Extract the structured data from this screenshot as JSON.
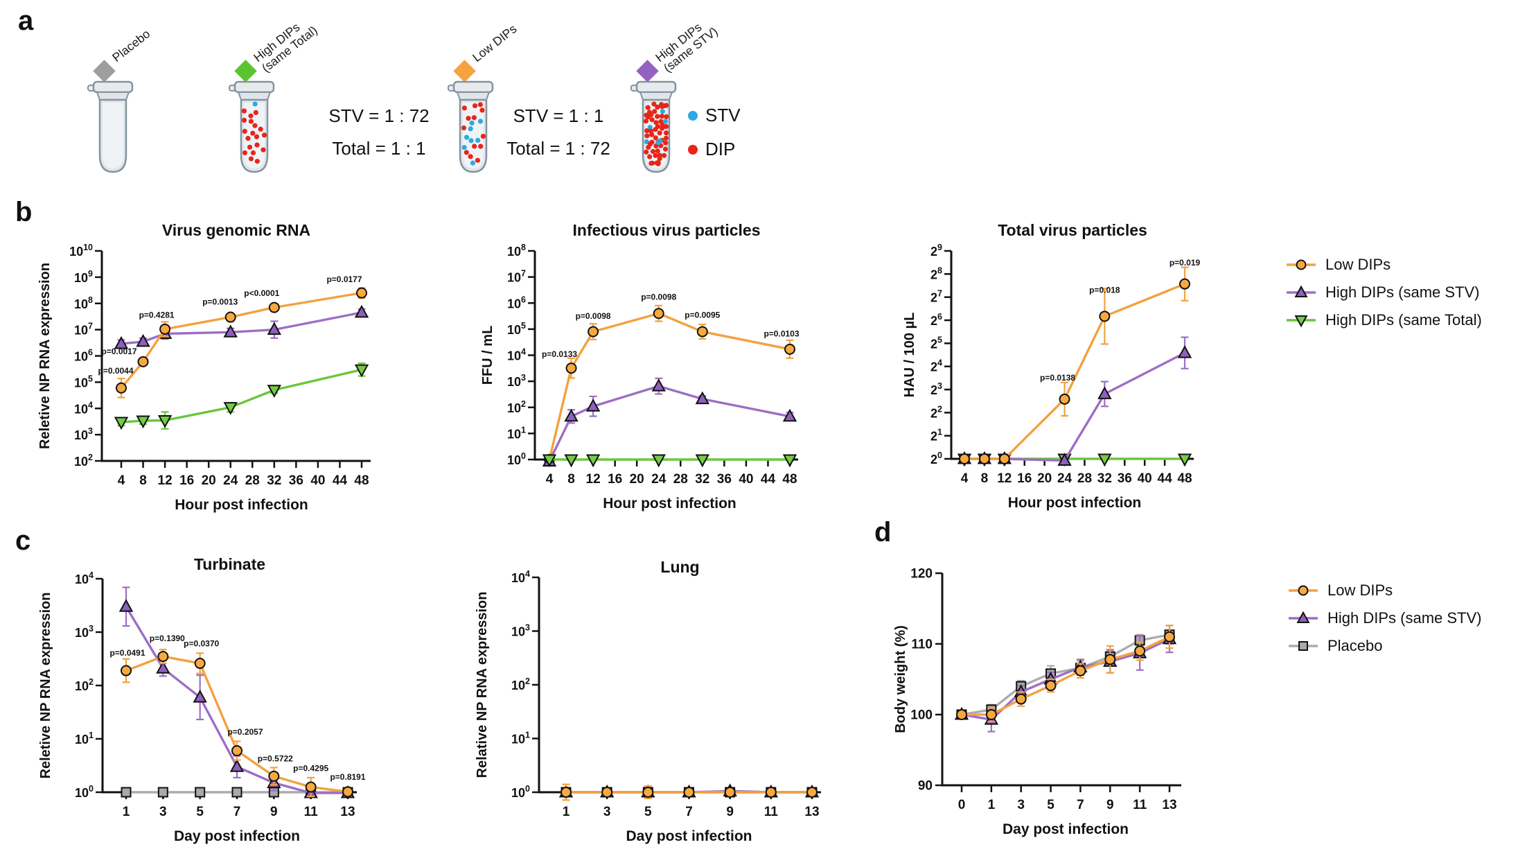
{
  "panel_a": {
    "label": "a",
    "tubes": [
      {
        "name": "Placebo",
        "diamond_color": "#9E9EA0",
        "label_lines": [
          "Placebo"
        ],
        "red_dots": 0,
        "blue_dots": 0
      },
      {
        "name": "High DIPs (same Total)",
        "diamond_color": "#5BC42E",
        "label_lines": [
          "High DIPs",
          "(same Total)"
        ],
        "red_dots": 19,
        "blue_dots": 1
      },
      {
        "name": "Low DIPs",
        "diamond_color": "#F5A340",
        "label_lines": [
          "Low DIPs"
        ],
        "red_dots": 13,
        "blue_dots": 8
      },
      {
        "name": "High DIPs (same STV)",
        "diamond_color": "#9662C1",
        "label_lines": [
          "High DIPs",
          "(same STV)"
        ],
        "red_dots": 54,
        "blue_dots": 6
      }
    ],
    "ratio_blocks": [
      {
        "line1": "STV = 1 : 72",
        "line2": "Total = 1 : 1"
      },
      {
        "line1": "STV = 1 : 1",
        "line2": "Total = 1 : 72"
      }
    ],
    "particle_legend": [
      {
        "label": "STV",
        "color": "#2CA9E1"
      },
      {
        "label": "DIP",
        "color": "#E82519"
      }
    ]
  },
  "panel_b": {
    "label": "b",
    "legend": [
      {
        "label": "Low DIPs",
        "marker": "circle",
        "color": "#F3A13F",
        "fill": "#F6A940"
      },
      {
        "label": "High DIPs (same STV)",
        "marker": "triangle-up",
        "color": "#9C6EC6",
        "fill": "#8F5FBC"
      },
      {
        "label": "High DIPs (same Total)",
        "marker": "triangle-down",
        "color": "#68C73C",
        "fill": "#74CC45"
      }
    ]
  },
  "panel_c": {
    "label": "c"
  },
  "panel_d": {
    "label": "d",
    "legend": [
      {
        "label": "Low DIPs",
        "marker": "circle",
        "color": "#F3A13F",
        "fill": "#F6A940"
      },
      {
        "label": "High DIPs (same STV)",
        "marker": "triangle-up",
        "color": "#9C6EC6",
        "fill": "#8F5FBC"
      },
      {
        "label": "Placebo",
        "marker": "square",
        "color": "#ACACAC",
        "fill": "#A9A9A9"
      }
    ]
  },
  "chart_data": [
    {
      "id": "virus-genomic-rna",
      "panel": "b",
      "type": "line",
      "title": "Virus genomic RNA",
      "xlabel": "Hour post infection",
      "ylabel": "Reletive NP RNA expression",
      "x_mode": "linear",
      "x_ticks": [
        4,
        8,
        12,
        16,
        20,
        24,
        28,
        32,
        36,
        40,
        44,
        48
      ],
      "y_scale": "log10",
      "y_exp_range": [
        2,
        10
      ],
      "grid": false,
      "legend_position": "right-of-panel",
      "series": [
        {
          "name": "High DIPs (same Total)",
          "color": "#68C73C",
          "fill": "#74CC45",
          "marker": "triangle-down",
          "x": [
            4,
            8,
            12,
            24,
            32,
            48
          ],
          "values": [
            3000,
            3400,
            3500,
            11000,
            50000,
            300000
          ],
          "err": [
            1.35,
            1.35,
            2.1,
            1.5,
            1.3,
            1.75
          ]
        },
        {
          "name": "High DIPs (same STV)",
          "color": "#9C6EC6",
          "fill": "#8F5FBC",
          "marker": "triangle-up",
          "x": [
            4,
            8,
            12,
            24,
            32,
            48
          ],
          "values": [
            2900000,
            3500000,
            7000000,
            8000000,
            10000000,
            45000000
          ],
          "err": [
            1.4,
            1.35,
            1.6,
            1.4,
            2.1,
            1.35
          ]
        },
        {
          "name": "Low DIPs",
          "color": "#F3A13F",
          "fill": "#F6A940",
          "marker": "circle",
          "x": [
            4,
            8,
            12,
            24,
            32,
            48
          ],
          "values": [
            60000,
            600000,
            10500000,
            30000000,
            70000000,
            250000000
          ],
          "err": [
            2.3,
            1.3,
            1.9,
            1.3,
            1.2,
            1.55
          ]
        }
      ],
      "annotations": [
        {
          "text": "p=0.0044",
          "x": 4,
          "y": 210000,
          "dx": -8
        },
        {
          "text": "p=0.0017",
          "x": 4,
          "y": 1150000,
          "dx": -3
        },
        {
          "text": "p=0.4281",
          "x": 12,
          "y": 28000000,
          "dx": -12
        },
        {
          "text": "p=0.0013",
          "x": 24,
          "y": 90000000,
          "dx": -15
        },
        {
          "text": "p<0.0001",
          "x": 32,
          "y": 190000000,
          "dx": -18
        },
        {
          "text": "p=0.0177",
          "x": 48,
          "y": 650000000,
          "dx": -25
        }
      ]
    },
    {
      "id": "infectious-virus-particles",
      "panel": "b",
      "type": "line",
      "title": "Infectious virus particles",
      "xlabel": "Hour post infection",
      "ylabel": "FFU / mL",
      "x_mode": "linear",
      "x_ticks": [
        4,
        8,
        12,
        16,
        20,
        24,
        28,
        32,
        36,
        40,
        44,
        48
      ],
      "y_scale": "log10",
      "y_exp_range": [
        0,
        8
      ],
      "grid": false,
      "series": [
        {
          "name": "Low DIPs",
          "color": "#F3A13F",
          "fill": "#F6A940",
          "marker": "circle",
          "x": [
            4,
            8,
            12,
            24,
            32,
            48
          ],
          "values": [
            1,
            3200,
            80000,
            400000,
            80000,
            17000
          ],
          "err": [
            1,
            2.4,
            2.0,
            2.0,
            1.9,
            2.2
          ]
        },
        {
          "name": "High DIPs (same STV)",
          "color": "#9C6EC6",
          "fill": "#8F5FBC",
          "marker": "triangle-up",
          "x": [
            4,
            8,
            12,
            24,
            32,
            48
          ],
          "values": [
            0.85,
            45,
            110,
            650,
            210,
            45
          ],
          "err": [
            1,
            1.8,
            2.4,
            2.0,
            1.3,
            1.4
          ]
        },
        {
          "name": "High DIPs (same Total)",
          "color": "#68C73C",
          "fill": "#74CC45",
          "marker": "triangle-down",
          "x": [
            4,
            8,
            12,
            24,
            32,
            48
          ],
          "values": [
            1,
            1,
            1,
            1,
            1,
            1
          ],
          "err": [
            1,
            1,
            1,
            1,
            1,
            1
          ]
        }
      ],
      "annotations": [
        {
          "text": "p=0.0133",
          "x": 8,
          "y": 8500,
          "dx": -17
        },
        {
          "text": "p=0.0098",
          "x": 12,
          "y": 250000,
          "dx": 0
        },
        {
          "text": "p=0.0098",
          "x": 24,
          "y": 1350000,
          "dx": 0
        },
        {
          "text": "p=0.0095",
          "x": 32,
          "y": 270000,
          "dx": 0
        },
        {
          "text": "p=0.0103",
          "x": 48,
          "y": 52000,
          "dx": -12
        }
      ]
    },
    {
      "id": "total-virus-particles",
      "panel": "b",
      "type": "line",
      "title": "Total virus particles",
      "xlabel": "Hour post infection",
      "ylabel": "HAU / 100 µL",
      "x_mode": "linear",
      "x_ticks": [
        4,
        8,
        12,
        16,
        20,
        24,
        28,
        32,
        36,
        40,
        44,
        48
      ],
      "y_scale": "log2",
      "y_exp_range": [
        0,
        9
      ],
      "grid": false,
      "series": [
        {
          "name": "High DIPs (same Total)",
          "color": "#68C73C",
          "fill": "#74CC45",
          "marker": "triangle-down",
          "x": [
            4,
            8,
            12,
            24,
            32,
            48
          ],
          "values": [
            1,
            1,
            1,
            1,
            1,
            1
          ],
          "err": [
            1,
            1,
            1,
            1,
            1,
            1
          ]
        },
        {
          "name": "High DIPs (same STV)",
          "color": "#9C6EC6",
          "fill": "#8F5FBC",
          "marker": "triangle-up",
          "x": [
            4,
            8,
            12,
            24,
            32,
            48
          ],
          "values": [
            1,
            1,
            1,
            0.95,
            7,
            24
          ],
          "err": [
            1,
            1,
            1,
            1,
            1.45,
            1.6
          ]
        },
        {
          "name": "Low DIPs",
          "color": "#F3A13F",
          "fill": "#F6A940",
          "marker": "circle",
          "x": [
            4,
            8,
            12,
            24,
            32,
            48
          ],
          "values": [
            1,
            1,
            1,
            6,
            72,
            190
          ],
          "err": [
            1,
            1,
            1,
            1.65,
            2.3,
            1.65
          ]
        }
      ],
      "annotations": [
        {
          "text": "p=0.0138",
          "x": 24,
          "y": 10.5,
          "dx": -10
        },
        {
          "text": "p=0.018",
          "x": 32,
          "y": 145,
          "dx": 0
        },
        {
          "text": "p=0.019",
          "x": 48,
          "y": 330,
          "dx": 0
        }
      ]
    },
    {
      "id": "turbinate",
      "panel": "c",
      "type": "line",
      "title": "Turbinate",
      "xlabel": "Day post infection",
      "ylabel": "Reletive NP RNA expression",
      "x_mode": "linear",
      "x_ticks": [
        1,
        3,
        5,
        7,
        9,
        11,
        13
      ],
      "y_scale": "log10",
      "y_exp_range": [
        0,
        4
      ],
      "grid": false,
      "series": [
        {
          "name": "Placebo",
          "color": "#ACACAC",
          "fill": "#A9A9A9",
          "marker": "square",
          "x": [
            1,
            3,
            5,
            7,
            9,
            11,
            13
          ],
          "values": [
            1,
            1,
            1,
            1,
            1,
            1,
            1
          ],
          "err": [
            1,
            1,
            1,
            1,
            1,
            1,
            1
          ]
        },
        {
          "name": "High DIPs (same STV)",
          "color": "#9C6EC6",
          "fill": "#8F5FBC",
          "marker": "triangle-up",
          "x": [
            1,
            3,
            5,
            7,
            9,
            11,
            13
          ],
          "values": [
            3000,
            210,
            60,
            3,
            1.5,
            0.97,
            0.97
          ],
          "err": [
            2.3,
            1.4,
            2.6,
            1.6,
            1.4,
            1.2,
            1.1
          ]
        },
        {
          "name": "Low DIPs",
          "color": "#F3A13F",
          "fill": "#F6A940",
          "marker": "circle",
          "x": [
            1,
            3,
            5,
            7,
            9,
            11,
            13
          ],
          "values": [
            190,
            350,
            260,
            6,
            2,
            1.25,
            1.02
          ],
          "err": [
            1.65,
            1.35,
            1.55,
            1.5,
            1.45,
            1.5,
            1.2
          ]
        }
      ],
      "annotations": [
        {
          "text": "p=0.0491",
          "x": 1,
          "y": 360,
          "dx": 2
        },
        {
          "text": "p=0.1390",
          "x": 3,
          "y": 680,
          "dx": 6
        },
        {
          "text": "p=0.0370",
          "x": 5,
          "y": 540,
          "dx": 2
        },
        {
          "text": "p=0.2057",
          "x": 7,
          "y": 12,
          "dx": 12
        },
        {
          "text": "p=0.5722",
          "x": 9,
          "y": 3.8,
          "dx": 2
        },
        {
          "text": "p=0.4295",
          "x": 11,
          "y": 2.5,
          "dx": 0
        },
        {
          "text": "p=0.8191",
          "x": 13,
          "y": 1.72,
          "dx": 0
        }
      ]
    },
    {
      "id": "lung",
      "panel": "c",
      "type": "line",
      "title": "Lung",
      "xlabel": "Day post infection",
      "ylabel": "Relative NP RNA expression",
      "x_mode": "linear",
      "x_ticks": [
        1,
        3,
        5,
        7,
        9,
        11,
        13
      ],
      "y_scale": "log10",
      "y_exp_range": [
        0,
        4
      ],
      "grid": false,
      "series": [
        {
          "name": "Placebo",
          "color": "#ACACAC",
          "fill": "#A9A9A9",
          "marker": "square",
          "x": [
            1,
            3,
            5,
            7,
            9,
            11,
            13
          ],
          "values": [
            1,
            1,
            1,
            1,
            1,
            1,
            1
          ],
          "err": [
            1,
            1,
            1,
            1,
            1,
            1,
            1
          ]
        },
        {
          "name": "High DIPs (same STV)",
          "color": "#9C6EC6",
          "fill": "#8F5FBC",
          "marker": "triangle-up",
          "x": [
            1,
            3,
            5,
            7,
            9,
            11,
            13
          ],
          "values": [
            1,
            1,
            1,
            1,
            1.05,
            1,
            1
          ],
          "err": [
            1,
            1,
            1,
            1,
            1,
            1,
            1
          ]
        },
        {
          "name": "Low DIPs",
          "color": "#F3A13F",
          "fill": "#F6A940",
          "marker": "circle",
          "x": [
            1,
            3,
            5,
            7,
            9,
            11,
            13
          ],
          "values": [
            1,
            1,
            1,
            1,
            1,
            1,
            1
          ],
          "err": [
            1.4,
            1.15,
            1.3,
            1.15,
            1.12,
            1.12,
            1.12
          ]
        }
      ],
      "annotations": []
    },
    {
      "id": "body-weight",
      "panel": "d",
      "type": "line",
      "title": "",
      "xlabel": "Day post infection",
      "ylabel": "Body weight (%)",
      "x_mode": "categorical",
      "x_ticks": [
        0,
        1,
        3,
        5,
        7,
        9,
        11,
        13
      ],
      "y_scale": "linear",
      "y_range": [
        90,
        120
      ],
      "y_ticks": [
        90,
        100,
        110,
        120
      ],
      "grid": false,
      "series": [
        {
          "name": "Placebo",
          "color": "#ACACAC",
          "fill": "#A9A9A9",
          "marker": "square",
          "x": [
            0,
            1,
            3,
            5,
            7,
            9,
            11,
            13
          ],
          "values": [
            100,
            100.7,
            104.0,
            105.8,
            106.6,
            108.2,
            110.5,
            111.3
          ],
          "err": [
            0,
            0.7,
            0.8,
            1.1,
            1.0,
            1.0,
            0.8,
            1.3
          ]
        },
        {
          "name": "High DIPs (same STV)",
          "color": "#9C6EC6",
          "fill": "#8F5FBC",
          "marker": "triangle-up",
          "x": [
            0,
            1,
            3,
            5,
            7,
            9,
            11,
            13
          ],
          "values": [
            100,
            99.3,
            103.2,
            105.0,
            106.7,
            107.5,
            108.7,
            110.7
          ],
          "err": [
            0,
            1.7,
            0.9,
            1.0,
            1.1,
            1.6,
            2.4,
            1.9
          ]
        },
        {
          "name": "Low DIPs",
          "color": "#F3A13F",
          "fill": "#F6A940",
          "marker": "circle",
          "x": [
            0,
            1,
            3,
            5,
            7,
            9,
            11,
            13
          ],
          "values": [
            100,
            100.0,
            102.2,
            104.1,
            106.2,
            107.8,
            109.0,
            111.0
          ],
          "err": [
            0,
            1.0,
            1.0,
            0.9,
            1.0,
            1.9,
            1.3,
            1.6
          ]
        }
      ],
      "annotations": []
    }
  ]
}
